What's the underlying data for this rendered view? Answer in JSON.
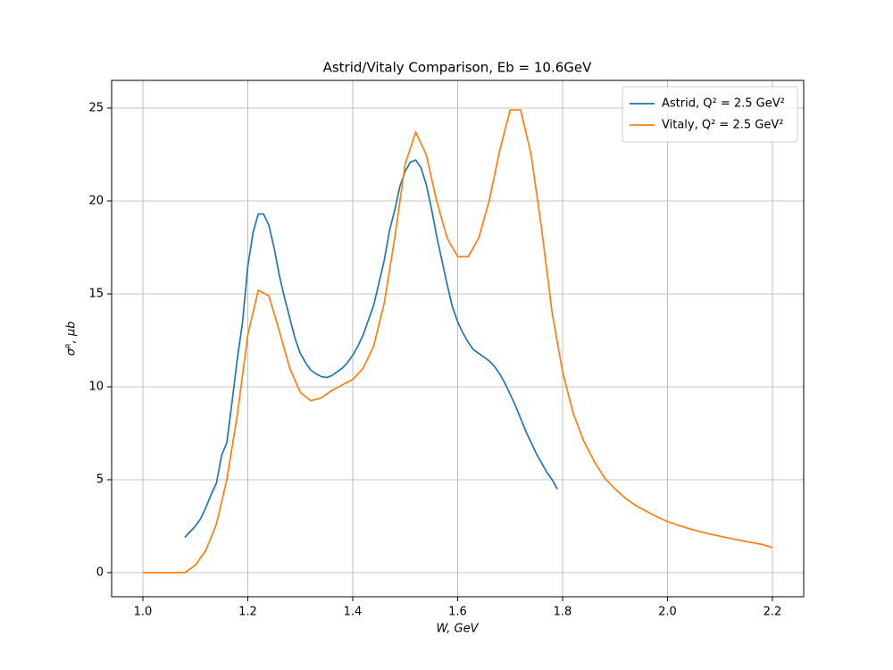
{
  "chart_data": {
    "type": "line",
    "title": "Astrid/Vitaly Comparison, Eb = 10.6GeV",
    "x_label": "W, GeV",
    "y_label": "σᴿ, μb",
    "xlim": [
      0.9404,
      2.2596
    ],
    "ylim": [
      -1.298,
      26.49
    ],
    "xticks": [
      {
        "value": 1,
        "label": "1.0"
      },
      1.2,
      1.4,
      1.6,
      1.8,
      {
        "value": 2,
        "label": "2.0"
      },
      2.2
    ],
    "yticks": [
      0,
      5,
      10,
      15,
      20,
      25
    ],
    "grid": true,
    "legend": "upper right",
    "series": [
      {
        "name": "Astrid, Q² = 2.5 GeV²",
        "color": "#1f77b4",
        "x": [
          1.08,
          1.09,
          1.1,
          1.11,
          1.12,
          1.13,
          1.14,
          1.15,
          1.16,
          1.17,
          1.18,
          1.19,
          1.2,
          1.21,
          1.22,
          1.23,
          1.24,
          1.25,
          1.26,
          1.27,
          1.28,
          1.29,
          1.3,
          1.31,
          1.32,
          1.33,
          1.34,
          1.35,
          1.36,
          1.37,
          1.38,
          1.39,
          1.4,
          1.41,
          1.42,
          1.43,
          1.44,
          1.45,
          1.46,
          1.47,
          1.48,
          1.49,
          1.5,
          1.51,
          1.52,
          1.53,
          1.54,
          1.55,
          1.56,
          1.57,
          1.58,
          1.59,
          1.6,
          1.61,
          1.62,
          1.63,
          1.64,
          1.65,
          1.66,
          1.67,
          1.68,
          1.69,
          1.7,
          1.71,
          1.72,
          1.73,
          1.74,
          1.75,
          1.76,
          1.77,
          1.78,
          1.79
        ],
        "values": [
          1.9,
          2.2,
          2.5,
          2.9,
          3.5,
          4.2,
          4.8,
          6.3,
          7.0,
          9.2,
          11.5,
          13.5,
          16.5,
          18.3,
          19.3,
          19.3,
          18.7,
          17.5,
          16.0,
          14.8,
          13.7,
          12.6,
          11.8,
          11.3,
          10.9,
          10.7,
          10.55,
          10.5,
          10.6,
          10.8,
          11.0,
          11.3,
          11.7,
          12.2,
          12.8,
          13.6,
          14.4,
          15.6,
          16.8,
          18.4,
          19.5,
          20.8,
          21.6,
          22.1,
          22.2,
          21.8,
          20.9,
          19.6,
          18.1,
          16.8,
          15.5,
          14.3,
          13.5,
          12.9,
          12.4,
          12.0,
          11.8,
          11.6,
          11.4,
          11.1,
          10.7,
          10.2,
          9.6,
          9.0,
          8.3,
          7.6,
          7.0,
          6.4,
          5.9,
          5.4,
          5.0,
          4.5
        ]
      },
      {
        "name": "Vitaly, Q² = 2.5 GeV²",
        "color": "#ff7f0e",
        "x": [
          1.0,
          1.02,
          1.04,
          1.06,
          1.08,
          1.1,
          1.12,
          1.14,
          1.16,
          1.18,
          1.2,
          1.22,
          1.24,
          1.26,
          1.28,
          1.3,
          1.32,
          1.34,
          1.36,
          1.38,
          1.4,
          1.42,
          1.44,
          1.46,
          1.48,
          1.5,
          1.52,
          1.54,
          1.56,
          1.58,
          1.6,
          1.62,
          1.64,
          1.66,
          1.68,
          1.7,
          1.72,
          1.74,
          1.76,
          1.78,
          1.8,
          1.82,
          1.84,
          1.86,
          1.88,
          1.9,
          1.92,
          1.94,
          1.96,
          1.98,
          2.0,
          2.02,
          2.04,
          2.06,
          2.08,
          2.1,
          2.12,
          2.14,
          2.16,
          2.18,
          2.2
        ],
        "values": [
          0,
          0,
          0,
          0,
          0,
          0.4,
          1.2,
          2.6,
          5.0,
          8.5,
          12.8,
          15.2,
          14.9,
          13.0,
          11.0,
          9.7,
          9.25,
          9.4,
          9.8,
          10.1,
          10.4,
          11.0,
          12.2,
          14.5,
          18.0,
          22.0,
          23.7,
          22.5,
          20.0,
          18.0,
          17.0,
          17.0,
          18.0,
          20.0,
          22.7,
          24.9,
          24.9,
          22.5,
          18.5,
          14.0,
          10.8,
          8.6,
          7.1,
          6.0,
          5.1,
          4.5,
          4.0,
          3.6,
          3.3,
          3.0,
          2.75,
          2.55,
          2.38,
          2.22,
          2.08,
          1.96,
          1.84,
          1.73,
          1.62,
          1.52,
          1.35
        ]
      }
    ]
  }
}
